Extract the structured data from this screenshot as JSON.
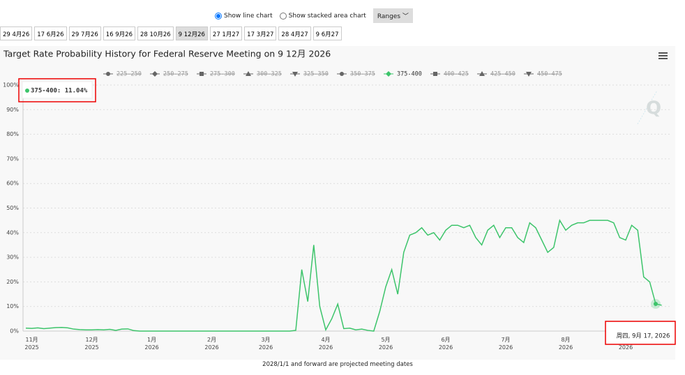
{
  "controls": {
    "line_chart": {
      "label": "Show line chart",
      "checked": true
    },
    "stacked_chart": {
      "label": "Show stacked area chart",
      "checked": false
    },
    "ranges": "Ranges"
  },
  "tabs": [
    {
      "label": "29 4月26",
      "selected": false
    },
    {
      "label": "17 6月26",
      "selected": false
    },
    {
      "label": "29 7月26",
      "selected": false
    },
    {
      "label": "16 9月26",
      "selected": false
    },
    {
      "label": "28 10月26",
      "selected": false
    },
    {
      "label": "9 12月26",
      "selected": true
    },
    {
      "label": "27 1月27",
      "selected": false
    },
    {
      "label": "17 3月27",
      "selected": false
    },
    {
      "label": "28 4月27",
      "selected": false
    },
    {
      "label": "9 6月27",
      "selected": false
    }
  ],
  "chart_data": {
    "type": "line",
    "title": "Target Rate Probability History for Federal Reserve Meeting on 9 12月 2026",
    "ylim": [
      0,
      100
    ],
    "yticks": [
      {
        "value": 0,
        "label": "0%"
      },
      {
        "value": 10,
        "label": "10%"
      },
      {
        "value": 20,
        "label": "20%"
      },
      {
        "value": 30,
        "label": "30%"
      },
      {
        "value": 40,
        "label": "40%"
      },
      {
        "value": 50,
        "label": "50%"
      },
      {
        "value": 60,
        "label": "60%"
      },
      {
        "value": 70,
        "label": "70%"
      },
      {
        "value": 80,
        "label": "80%"
      },
      {
        "value": 90,
        "label": "90%"
      },
      {
        "value": 100,
        "label": "100%"
      }
    ],
    "grid": true,
    "categories": [
      null,
      "11月 2025",
      null,
      null,
      null,
      null,
      null,
      null,
      null,
      null,
      null,
      "12月 2025",
      null,
      null,
      null,
      null,
      null,
      null,
      null,
      null,
      null,
      "1月 2026",
      null,
      null,
      null,
      null,
      null,
      null,
      null,
      null,
      null,
      "2月 2026",
      null,
      null,
      null,
      null,
      null,
      null,
      null,
      null,
      "3月 2026",
      null,
      null,
      null,
      null,
      null,
      null,
      null,
      null,
      null,
      "4月 2026",
      null,
      null,
      null,
      null,
      null,
      null,
      null,
      null,
      null,
      "5月 2026",
      null,
      null,
      null,
      null,
      null,
      null,
      null,
      null,
      null,
      "6月 2026",
      null,
      null,
      null,
      null,
      null,
      null,
      null,
      null,
      null,
      "7月 2026",
      null,
      null,
      null,
      null,
      null,
      null,
      null,
      null,
      null,
      "8月 2026",
      null,
      null,
      null,
      null,
      null,
      null,
      null,
      null,
      null,
      "9月 2026",
      null,
      null,
      null,
      null,
      null,
      null
    ],
    "series": [
      {
        "name": "225-250",
        "marker": "circle",
        "visible": false
      },
      {
        "name": "250-275",
        "marker": "diamond",
        "visible": false
      },
      {
        "name": "275-300",
        "marker": "square",
        "visible": false
      },
      {
        "name": "300-325",
        "marker": "triangle",
        "visible": false
      },
      {
        "name": "325-350",
        "marker": "triangle-down",
        "visible": false
      },
      {
        "name": "350-375",
        "marker": "circle",
        "visible": false
      },
      {
        "name": "375-400",
        "marker": "diamond",
        "visible": true,
        "color": "#3cc46a",
        "values": [
          1.2,
          1.1,
          1.3,
          1.0,
          1.2,
          1.4,
          1.5,
          1.3,
          0.8,
          0.6,
          0.5,
          0.5,
          0.6,
          0.5,
          0.7,
          0.3,
          0.8,
          0.9,
          0.2,
          0,
          0,
          0,
          0,
          0,
          0,
          0,
          0,
          0,
          0,
          0,
          0,
          0,
          0,
          0,
          0,
          0,
          0,
          0,
          0,
          0,
          0,
          0,
          0,
          0,
          0,
          0.3,
          25,
          12,
          35,
          10,
          0.5,
          5,
          11,
          1,
          1.2,
          0.5,
          0.8,
          0.3,
          0,
          8,
          18,
          25,
          15,
          32,
          39,
          40,
          42,
          39,
          40,
          37,
          41,
          43,
          43,
          42,
          43,
          38,
          35,
          41,
          43,
          38,
          42,
          42,
          38,
          36,
          44,
          42,
          37,
          32,
          34,
          45,
          41,
          43,
          44,
          44,
          45,
          45,
          45,
          45,
          44,
          38,
          37,
          43,
          41,
          22,
          20,
          11.04,
          10.5
        ]
      },
      {
        "name": "400-425",
        "marker": "square",
        "visible": false
      },
      {
        "name": "425-450",
        "marker": "triangle",
        "visible": false
      },
      {
        "name": "450-475",
        "marker": "triangle-down",
        "visible": false
      }
    ],
    "tooltip": {
      "series_label": "375-400: 11.04%",
      "date": "周四, 9月 17, 2026"
    }
  },
  "footer": "2028/1/1 and forward are projected meeting dates"
}
